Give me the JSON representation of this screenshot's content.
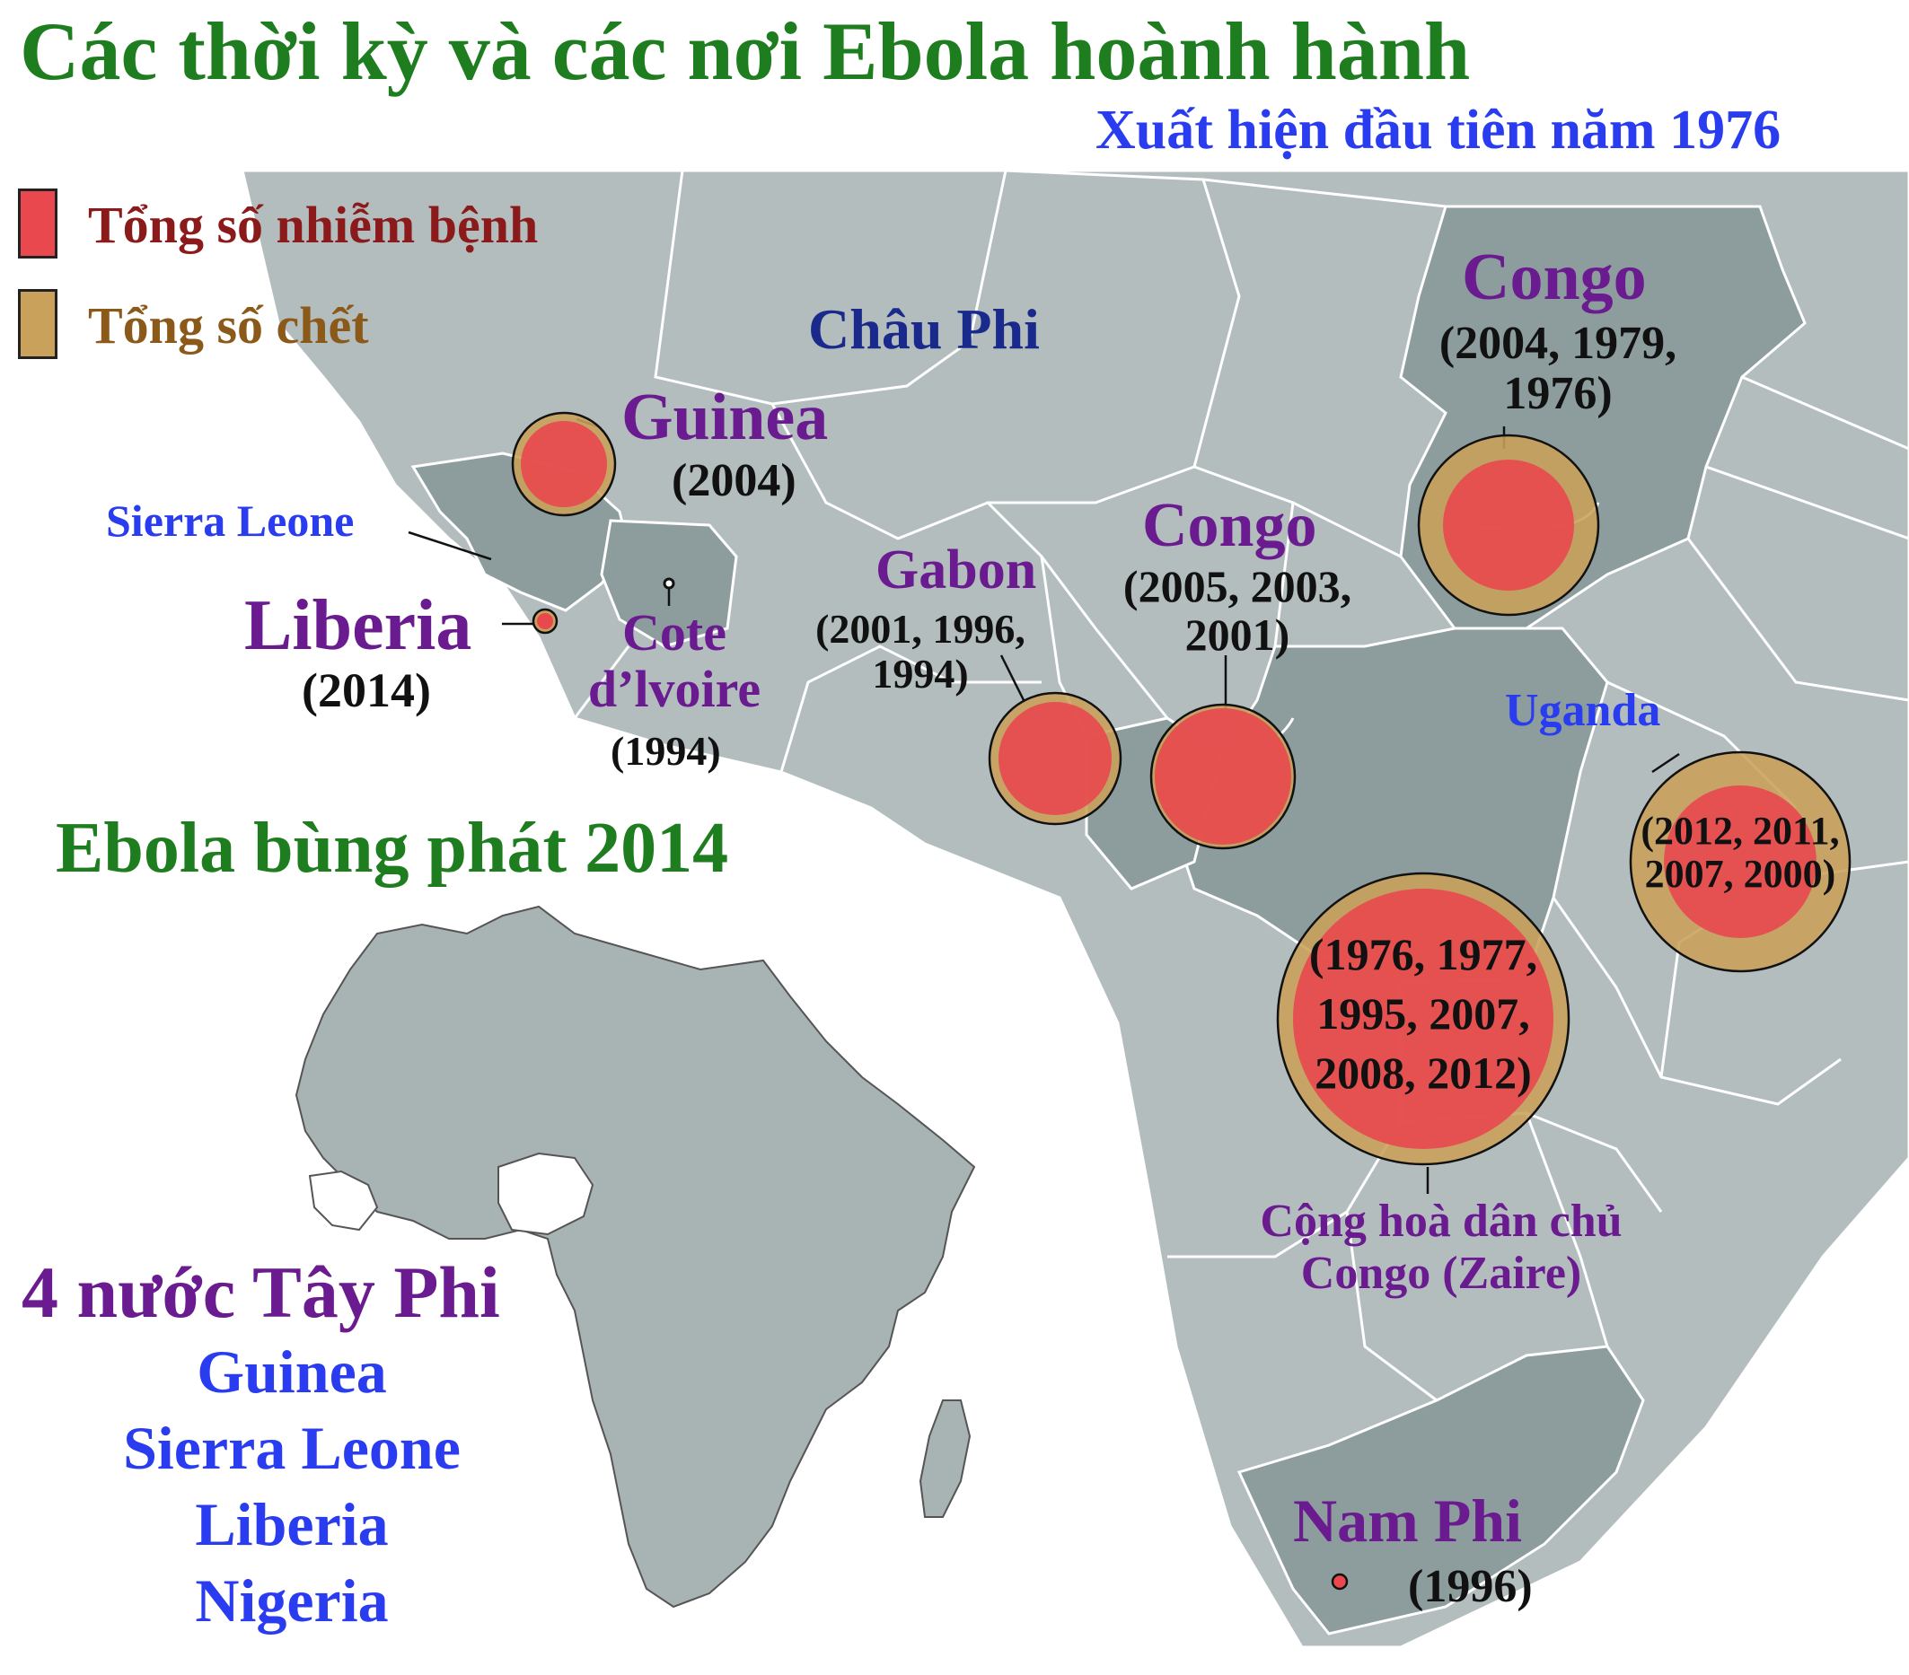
{
  "title": "Các thời kỳ và các nơi Ebola hoành hành",
  "subtitle": "Xuất hiện đầu tiên năm 1976",
  "colors": {
    "infected": "#e8484e",
    "deaths": "#c9a15a",
    "title": "#1e7d1e",
    "country_label": "#6a1b8f",
    "sea": "#ffffff",
    "land": "#b3bdbd",
    "land_highlight": "#8d9c9c"
  },
  "legend": {
    "infected_label": "Tổng số nhiễm bệnh",
    "deaths_label": "Tổng số chết"
  },
  "region_label": "Châu Phi",
  "outbreaks": [
    {
      "country": "Guinea",
      "years": "(2004)"
    },
    {
      "country": "Sierra Leone",
      "years": ""
    },
    {
      "country": "Liberia",
      "years": "(2014)"
    },
    {
      "country": "Cote d’lvoire",
      "years": "(1994)"
    },
    {
      "country": "Gabon",
      "years": "(2001, 1996, 1994)"
    },
    {
      "country": "Congo",
      "years": "(2005, 2003, 2001)"
    },
    {
      "country": "Congo",
      "years": "(2004, 1979, 1976)"
    },
    {
      "country": "Uganda",
      "years": "(2012, 2011, 2007, 2000)"
    },
    {
      "country": "Cộng hoà dân chủ Congo (Zaire)",
      "years": "(1976, 1977, 1995, 2007, 2008, 2012)"
    },
    {
      "country": "Nam Phi",
      "years": "(1996)"
    }
  ],
  "labels": {
    "cote_line1": "Cote",
    "cote_line2": "d’lvoire",
    "gabon_years_1": "(2001, 1996,",
    "gabon_years_2": "1994)",
    "congo_w_years_1": "(2005, 2003,",
    "congo_w_years_2": "2001)",
    "congo_n_years_1": "(2004, 1979,",
    "congo_n_years_2": "1976)",
    "uganda_years_1": "(2012, 2011,",
    "uganda_years_2": "2007, 2000)",
    "drc_years_1": "(1976, 1977,",
    "drc_years_2": "1995, 2007,",
    "drc_years_3": "2008, 2012)",
    "drc_name_1": "Cộng hoà dân chủ",
    "drc_name_2": "Congo (Zaire)"
  },
  "outbreak_2014": {
    "heading": "Ebola bùng phát 2014",
    "group_title": "4 nước Tây Phi",
    "countries": [
      "Guinea",
      "Sierra Leone",
      "Liberia",
      "Nigeria"
    ]
  }
}
